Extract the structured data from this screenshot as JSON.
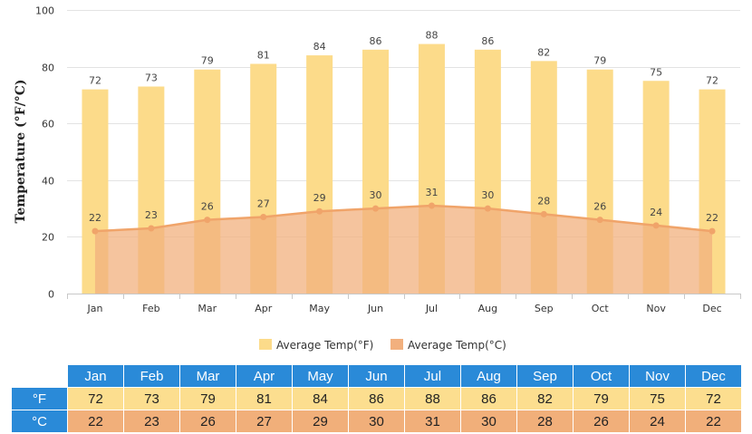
{
  "chart_data": {
    "type": "bar",
    "categories": [
      "Jan",
      "Feb",
      "Mar",
      "Apr",
      "May",
      "Jun",
      "Jul",
      "Aug",
      "Sep",
      "Oct",
      "Nov",
      "Dec"
    ],
    "series": [
      {
        "name": "Average Temp(°F)",
        "type": "bar",
        "color": "#fcdb8a",
        "values": [
          72,
          73,
          79,
          81,
          84,
          86,
          88,
          86,
          82,
          79,
          75,
          72
        ]
      },
      {
        "name": "Average Temp(°C)",
        "type": "area",
        "color": "#f2b07e",
        "line_color": "#f0a46a",
        "values": [
          22,
          23,
          26,
          27,
          29,
          30,
          31,
          30,
          28,
          26,
          24,
          22
        ]
      }
    ],
    "ylabel": "Temperature (°F/°C)",
    "xlabel": "",
    "ylim": [
      0,
      100
    ],
    "yticks": [
      "0",
      "20",
      "40",
      "60",
      "80",
      "100"
    ],
    "grid": true,
    "legend": "bottom-center"
  },
  "table": {
    "unit_f": "°F",
    "unit_c": "°C",
    "header_color": "#2a8ad8",
    "f_color": "#fcde8f",
    "c_color": "#f1af7a"
  }
}
